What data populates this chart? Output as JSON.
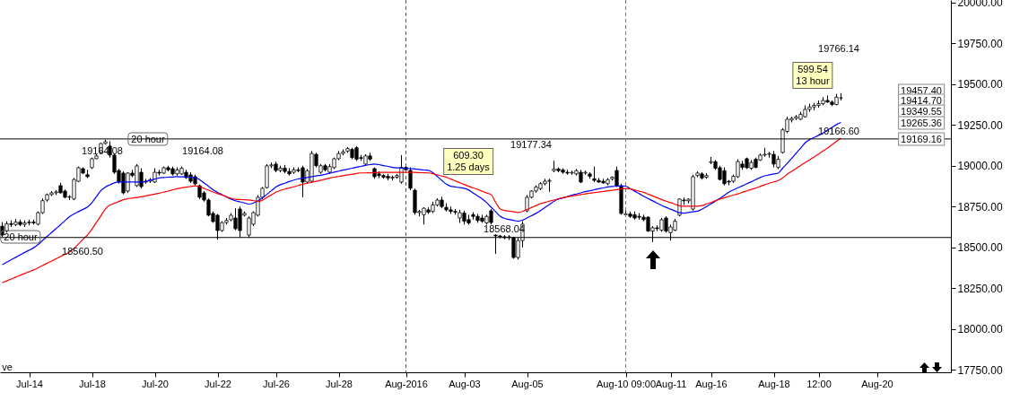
{
  "chart_data": {
    "type": "candlestick",
    "categories": [
      null,
      null,
      null,
      null,
      null,
      null,
      "Jul-14",
      null,
      null,
      null,
      null,
      null,
      null,
      null,
      null,
      null,
      null,
      null,
      null,
      null,
      "Jul-18",
      null,
      null,
      null,
      null,
      null,
      null,
      null,
      null,
      null,
      null,
      null,
      null,
      null,
      "Jul-20",
      null,
      null,
      null,
      null,
      null,
      null,
      null,
      null,
      null,
      null,
      null,
      null,
      null,
      "Jul-22",
      null,
      null,
      null,
      null,
      null,
      null,
      null,
      null,
      null,
      null,
      null,
      null,
      "Jul-26",
      null,
      null,
      null,
      null,
      null,
      null,
      null,
      null,
      null,
      null,
      null,
      null,
      null,
      "Jul-28",
      null,
      null,
      null,
      null,
      null,
      null,
      null,
      null,
      null,
      null,
      null,
      null,
      null,
      null,
      "Aug-2016",
      null,
      null,
      null,
      null,
      null,
      null,
      null,
      null,
      null,
      null,
      null,
      null,
      "Aug-03",
      null,
      null,
      null,
      null,
      null,
      null,
      null,
      null,
      null,
      null,
      null,
      null,
      null,
      "Aug-05",
      null,
      null,
      null,
      null,
      null,
      null,
      null,
      null,
      null,
      null,
      null,
      null,
      null,
      null,
      null,
      null,
      null,
      null,
      null,
      null,
      null,
      "Aug-10 09:00",
      null,
      null,
      null,
      null,
      null,
      null,
      null,
      null,
      null,
      "Aug-11",
      null,
      null,
      null,
      null,
      null,
      null,
      null,
      null,
      "Aug-16",
      null,
      null,
      null,
      null,
      null,
      null,
      null,
      null,
      null,
      null,
      null,
      null,
      null,
      "Aug-18",
      null,
      null,
      null,
      null,
      null,
      null,
      null,
      null,
      null,
      "12:00",
      null,
      null,
      null,
      null,
      null,
      null,
      null,
      null,
      null,
      null,
      null,
      null,
      "Aug-20",
      null,
      null,
      null,
      null,
      null,
      null,
      null,
      null,
      null,
      null,
      null,
      null,
      null,
      null,
      null,
      null
    ],
    "ohlc": [
      [
        18630,
        18655,
        18565,
        18575
      ],
      [
        18600,
        18660,
        18590,
        18645
      ],
      [
        18645,
        18665,
        18625,
        18640
      ],
      [
        18640,
        18675,
        18630,
        18655
      ],
      [
        18655,
        18670,
        18630,
        18640
      ],
      [
        18640,
        18665,
        18625,
        18650
      ],
      [
        18650,
        18670,
        18635,
        18655
      ],
      [
        18655,
        18670,
        18640,
        18650
      ],
      [
        18642,
        18720,
        18635,
        18713
      ],
      [
        18712,
        18800,
        18705,
        18786
      ],
      [
        18790,
        18830,
        18780,
        18823
      ],
      [
        18823,
        18845,
        18815,
        18834
      ],
      [
        18834,
        18850,
        18820,
        18840
      ],
      [
        18878,
        18895,
        18830,
        18834
      ],
      [
        18845,
        18855,
        18800,
        18807
      ],
      [
        18807,
        18820,
        18790,
        18810
      ],
      [
        18796,
        18925,
        18790,
        18916
      ],
      [
        18905,
        18995,
        18900,
        18988
      ],
      [
        18982,
        18990,
        18950,
        18955
      ],
      [
        18945,
        18975,
        18925,
        18933
      ],
      [
        18988,
        19050,
        18980,
        19043
      ],
      [
        19043,
        19070,
        19040,
        19060
      ],
      [
        19081,
        19140,
        19075,
        19136
      ],
      [
        19136,
        19160,
        19130,
        19147
      ],
      [
        19120,
        19150,
        19050,
        19065
      ],
      [
        19065,
        19075,
        18950,
        18960
      ],
      [
        18971,
        18980,
        18890,
        18900
      ],
      [
        18955,
        18965,
        18825,
        18834
      ],
      [
        18845,
        18960,
        18835,
        18955
      ],
      [
        18955,
        18975,
        18930,
        18940
      ],
      [
        18878,
        19010,
        18870,
        18999
      ],
      [
        18960,
        18985,
        18860,
        18872
      ],
      [
        18900,
        18920,
        18890,
        18905
      ],
      [
        18905,
        18925,
        18895,
        18915
      ],
      [
        18900,
        18985,
        18895,
        18960
      ],
      [
        18960,
        18975,
        18940,
        18955
      ],
      [
        18955,
        18995,
        18950,
        18988
      ],
      [
        18988,
        19000,
        18965,
        18975
      ],
      [
        18982,
        18995,
        18940,
        18950
      ],
      [
        18950,
        18990,
        18940,
        18975
      ],
      [
        18950,
        18995,
        18945,
        18985
      ],
      [
        18960,
        18975,
        18920,
        18927
      ],
      [
        18944,
        18960,
        18895,
        18905
      ],
      [
        18933,
        18945,
        18880,
        18889
      ],
      [
        18878,
        18885,
        18795,
        18807
      ],
      [
        18834,
        18845,
        18780,
        18790
      ],
      [
        18790,
        18800,
        18690,
        18697
      ],
      [
        18708,
        18720,
        18650,
        18658
      ],
      [
        18697,
        18705,
        18548,
        18603
      ],
      [
        18603,
        18660,
        18595,
        18652
      ],
      [
        18652,
        18680,
        18640,
        18665
      ],
      [
        18669,
        18710,
        18660,
        18697
      ],
      [
        18680,
        18740,
        18605,
        18614
      ],
      [
        18735,
        18750,
        18560,
        18603
      ],
      [
        18697,
        18720,
        18690,
        18708
      ],
      [
        18575,
        18690,
        18559,
        18680
      ],
      [
        18642,
        18720,
        18630,
        18713
      ],
      [
        18697,
        18820,
        18690,
        18807
      ],
      [
        18807,
        18870,
        18795,
        18862
      ],
      [
        18866,
        19010,
        18860,
        18999
      ],
      [
        18999,
        19020,
        18985,
        19005
      ],
      [
        19010,
        19025,
        18960,
        18971
      ],
      [
        18971,
        19000,
        18960,
        18985
      ],
      [
        18985,
        19005,
        18955,
        18965
      ],
      [
        18965,
        18985,
        18940,
        18950
      ],
      [
        18960,
        18990,
        18950,
        18975
      ],
      [
        18975,
        18990,
        18960,
        18970
      ],
      [
        18988,
        19000,
        18807,
        18900
      ],
      [
        18900,
        18980,
        18890,
        18970
      ],
      [
        18905,
        19090,
        18895,
        19075
      ],
      [
        19070,
        19080,
        18990,
        19000
      ],
      [
        18960,
        19010,
        18950,
        19000
      ],
      [
        19000,
        19010,
        18965,
        18975
      ],
      [
        18960,
        19010,
        18950,
        18995
      ],
      [
        18988,
        19050,
        18980,
        19043
      ],
      [
        19043,
        19090,
        19035,
        19075
      ],
      [
        19075,
        19100,
        19065,
        19085
      ],
      [
        19090,
        19115,
        19080,
        19105
      ],
      [
        19100,
        19110,
        19040,
        19050
      ],
      [
        19110,
        19120,
        19030,
        19040
      ],
      [
        19050,
        19065,
        19030,
        19045
      ],
      [
        19010,
        19070,
        19000,
        19060
      ],
      [
        19060,
        19080,
        19030,
        19040
      ],
      [
        18982,
        18990,
        18920,
        18933
      ],
      [
        18950,
        18965,
        18925,
        18940
      ],
      [
        18940,
        18950,
        18920,
        18930
      ],
      [
        18935,
        18950,
        18910,
        18925
      ],
      [
        18925,
        18940,
        18910,
        18930
      ],
      [
        18930,
        18950,
        18920,
        18940
      ],
      [
        18900,
        19065,
        18890,
        18990
      ],
      [
        18990,
        19005,
        18960,
        18975
      ],
      [
        18971,
        18990,
        18850,
        18862
      ],
      [
        18850,
        18860,
        18700,
        18713
      ],
      [
        18713,
        18730,
        18690,
        18720
      ],
      [
        18700,
        18745,
        18640,
        18740
      ],
      [
        18730,
        18745,
        18705,
        18715
      ],
      [
        18720,
        18780,
        18710,
        18760
      ],
      [
        18760,
        18800,
        18750,
        18790
      ],
      [
        18790,
        18810,
        18740,
        18750
      ],
      [
        18745,
        18770,
        18720,
        18730
      ],
      [
        18730,
        18750,
        18705,
        18720
      ],
      [
        18720,
        18735,
        18700,
        18715
      ],
      [
        18680,
        18730,
        18650,
        18713
      ],
      [
        18710,
        18725,
        18640,
        18660
      ],
      [
        18670,
        18700,
        18640,
        18650
      ],
      [
        18700,
        18715,
        18670,
        18690
      ],
      [
        18690,
        18705,
        18650,
        18665
      ],
      [
        18680,
        18700,
        18650,
        18660
      ],
      [
        18650,
        18700,
        18640,
        18690
      ],
      [
        18724,
        18735,
        18640,
        18652
      ],
      [
        18575,
        18580,
        18460,
        18570
      ],
      [
        18570,
        18575,
        18555,
        18565
      ],
      [
        18565,
        18575,
        18550,
        18560
      ],
      [
        18560,
        18575,
        18545,
        18565
      ],
      [
        18559,
        18565,
        18430,
        18438
      ],
      [
        18438,
        18560,
        18425,
        18542
      ],
      [
        18542,
        18660,
        18500,
        18642
      ],
      [
        18724,
        18820,
        18715,
        18807
      ],
      [
        18807,
        18850,
        18800,
        18845
      ],
      [
        18845,
        18880,
        18835,
        18870
      ],
      [
        18860,
        18900,
        18850,
        18890
      ],
      [
        18890,
        18920,
        18880,
        18905
      ],
      [
        18905,
        18920,
        18840,
        18910
      ],
      [
        18970,
        19030,
        18960,
        18980
      ],
      [
        18980,
        18990,
        18960,
        18970
      ],
      [
        18975,
        18985,
        18950,
        18960
      ],
      [
        18960,
        18975,
        18945,
        18955
      ],
      [
        18955,
        18970,
        18945,
        18960
      ],
      [
        18950,
        18980,
        18940,
        18970
      ],
      [
        18960,
        18975,
        18895,
        18900
      ],
      [
        18955,
        18970,
        18945,
        18960
      ],
      [
        18950,
        18960,
        18920,
        18935
      ],
      [
        18920,
        18995,
        18900,
        18910
      ],
      [
        18910,
        18925,
        18895,
        18900
      ],
      [
        18905,
        18920,
        18890,
        18895
      ],
      [
        18890,
        18925,
        18880,
        18915
      ],
      [
        18920,
        18935,
        18910,
        18930
      ],
      [
        18971,
        18995,
        18870,
        18878
      ],
      [
        18878,
        18890,
        18700,
        18708
      ],
      [
        18700,
        18730,
        18690,
        18705
      ],
      [
        18705,
        18720,
        18680,
        18690
      ],
      [
        18700,
        18720,
        18670,
        18680
      ],
      [
        18690,
        18710,
        18670,
        18685
      ],
      [
        18685,
        18700,
        18660,
        18670
      ],
      [
        18685,
        18690,
        18595,
        18600
      ],
      [
        18600,
        18630,
        18532,
        18620
      ],
      [
        18620,
        18635,
        18600,
        18615
      ],
      [
        18605,
        18680,
        18595,
        18669
      ],
      [
        18680,
        18690,
        18590,
        18600
      ],
      [
        18590,
        18640,
        18542,
        18625
      ],
      [
        18605,
        18675,
        18600,
        18660
      ],
      [
        18697,
        18800,
        18690,
        18796
      ],
      [
        18790,
        18805,
        18760,
        18785
      ],
      [
        18785,
        18800,
        18770,
        18795
      ],
      [
        18735,
        18945,
        18725,
        18933
      ],
      [
        18940,
        18965,
        18930,
        18955
      ],
      [
        18950,
        18960,
        18915,
        18925
      ],
      [
        18930,
        18955,
        18920,
        18940
      ],
      [
        19020,
        19054,
        19010,
        19025
      ],
      [
        19025,
        19035,
        18975,
        18985
      ],
      [
        18988,
        19000,
        18910,
        18916
      ],
      [
        18970,
        18990,
        18880,
        18890
      ],
      [
        18905,
        18912,
        18880,
        18900
      ],
      [
        18905,
        18945,
        18895,
        18935
      ],
      [
        18933,
        19040,
        18925,
        19026
      ],
      [
        19010,
        19030,
        18975,
        18990
      ],
      [
        19043,
        19050,
        18980,
        18988
      ],
      [
        18985,
        19035,
        18975,
        19020
      ],
      [
        19040,
        19050,
        18985,
        18990
      ],
      [
        19035,
        19075,
        19030,
        19065
      ],
      [
        19065,
        19110,
        19055,
        19070
      ],
      [
        19070,
        19085,
        19050,
        19075
      ],
      [
        19070,
        19090,
        18990,
        19010
      ],
      [
        18990,
        19060,
        18980,
        19040
      ],
      [
        19081,
        19230,
        19075,
        19220
      ],
      [
        19210,
        19300,
        19200,
        19285
      ],
      [
        19280,
        19300,
        19265,
        19290
      ],
      [
        19290,
        19310,
        19280,
        19300
      ],
      [
        19285,
        19330,
        19280,
        19315
      ],
      [
        19300,
        19370,
        19295,
        19345
      ],
      [
        19345,
        19380,
        19330,
        19360
      ],
      [
        19360,
        19385,
        19340,
        19370
      ],
      [
        19370,
        19400,
        19355,
        19380
      ],
      [
        19380,
        19420,
        19370,
        19400
      ],
      [
        19400,
        19430,
        19385,
        19390
      ],
      [
        19390,
        19400,
        19365,
        19375
      ],
      [
        19375,
        19440,
        19370,
        19420
      ],
      [
        19415,
        19445,
        19400,
        19415
      ],
      null,
      null,
      null,
      null,
      null,
      null,
      null,
      null,
      null,
      null,
      null,
      null,
      null,
      null,
      null,
      null,
      null,
      null,
      null,
      null,
      null,
      null,
      null,
      null
    ],
    "series": [
      {
        "type": "line",
        "color": "#0000ff",
        "values": [
          18394,
          18409,
          18424,
          18439,
          18454,
          18469,
          18483,
          18498,
          18518,
          18543,
          18567,
          18591,
          18615,
          18639,
          18664,
          18688,
          18705,
          18719,
          18733,
          18747,
          18774,
          18811,
          18848,
          18870,
          18883,
          18895,
          18900,
          18900,
          18900,
          18900,
          18900,
          18900,
          18904,
          18911,
          18918,
          18925,
          18928,
          18930,
          18931,
          18933,
          18932,
          18931,
          18929,
          18928,
          18915,
          18894,
          18874,
          18853,
          18837,
          18823,
          18809,
          18796,
          18786,
          18779,
          18772,
          18765,
          18772,
          18786,
          18803,
          18825,
          18847,
          18869,
          18884,
          18893,
          18903,
          18912,
          18919,
          18924,
          18928,
          18933,
          18938,
          18942,
          18948,
          18954,
          18961,
          18967,
          18973,
          18979,
          18985,
          18991,
          18996,
          19002,
          19007,
          19010,
          19007,
          19001,
          18996,
          18990,
          18987,
          18986,
          18984,
          18983,
          18980,
          18977,
          18974,
          18972,
          18957,
          18934,
          18911,
          18887,
          18874,
          18870,
          18866,
          18862,
          18851,
          18833,
          18815,
          18797,
          18774,
          18746,
          18719,
          18691,
          18677,
          18671,
          18666,
          18660,
          18667,
          18680,
          18694,
          18708,
          18725,
          18744,
          18763,
          18782,
          18795,
          18803,
          18811,
          18820,
          18827,
          18834,
          18841,
          18847,
          18853,
          18859,
          18864,
          18870,
          18873,
          18875,
          18876,
          18875,
          18860,
          18844,
          18829,
          18813,
          18799,
          18785,
          18771,
          18757,
          18745,
          18734,
          18723,
          18712,
          18710,
          18714,
          18718,
          18722,
          18734,
          18750,
          18767,
          18783,
          18801,
          18819,
          18838,
          18852,
          18865,
          18877,
          18890,
          18902,
          18915,
          18928,
          18938,
          18944,
          18950,
          18955,
          18985,
          19014,
          19045,
          19077,
          19108,
          19140,
          19160,
          19173,
          19186,
          19201,
          19218,
          19235,
          19252,
          19265,
          null,
          null,
          null,
          null,
          null,
          null,
          null,
          null,
          null,
          null,
          null,
          null,
          null,
          null,
          null,
          null,
          null,
          null,
          null,
          null,
          null,
          null,
          null,
          null
        ]
      },
      {
        "type": "line",
        "color": "#ff0000",
        "values": [
          18284,
          18295,
          18306,
          18318,
          18329,
          18340,
          18351,
          18362,
          18375,
          18389,
          18403,
          18416,
          18430,
          18444,
          18458,
          18471,
          18494,
          18521,
          18549,
          18576,
          18612,
          18653,
          18694,
          18736,
          18759,
          18770,
          18781,
          18792,
          18798,
          18802,
          18806,
          18810,
          18815,
          18821,
          18826,
          18832,
          18838,
          18845,
          18852,
          18859,
          18865,
          18869,
          18873,
          18877,
          18872,
          18861,
          18850,
          18839,
          18829,
          18820,
          18810,
          18801,
          18795,
          18793,
          18792,
          18790,
          18787,
          18781,
          18789,
          18806,
          18822,
          18838,
          18849,
          18857,
          18864,
          18871,
          18879,
          18886,
          18893,
          18899,
          18905,
          18911,
          18918,
          18924,
          18930,
          18934,
          18939,
          18944,
          18948,
          18953,
          18956,
          18956,
          18957,
          18958,
          18959,
          18960,
          18960,
          18960,
          18960,
          18960,
          18960,
          18960,
          18959,
          18958,
          18957,
          18956,
          18951,
          18944,
          18937,
          18930,
          18918,
          18907,
          18896,
          18885,
          18874,
          18864,
          18855,
          18844,
          18833,
          18822,
          18776,
          18735,
          18726,
          18722,
          18718,
          18714,
          18720,
          18732,
          18744,
          18756,
          18768,
          18775,
          18783,
          18790,
          18798,
          18805,
          18810,
          18814,
          18819,
          18823,
          18828,
          18832,
          18836,
          18839,
          18843,
          18847,
          18850,
          18854,
          18858,
          18861,
          18858,
          18851,
          18844,
          18837,
          18826,
          18815,
          18804,
          18793,
          18783,
          18774,
          18764,
          18755,
          18752,
          18752,
          18752,
          18752,
          18756,
          18766,
          18775,
          18785,
          18796,
          18804,
          18812,
          18820,
          18828,
          18837,
          18846,
          18855,
          18864,
          18873,
          18884,
          18893,
          18901,
          18909,
          18926,
          18948,
          18966,
          18984,
          19002,
          19019,
          19036,
          19054,
          19072,
          19090,
          19108,
          19129,
          19150,
          19169,
          null,
          null,
          null,
          null,
          null,
          null,
          null,
          null,
          null,
          null,
          null,
          null,
          null,
          null,
          null,
          null,
          null,
          null,
          null,
          null,
          null,
          null,
          null,
          null
        ]
      }
    ],
    "ylim": [
      17735,
      20015
    ],
    "yticks": [
      {
        "value": 17750,
        "label": "17750.00"
      },
      {
        "value": 18000,
        "label": "18000.00"
      },
      {
        "value": 18250,
        "label": "18250.00"
      },
      {
        "value": 18500,
        "label": "18500.00"
      },
      {
        "value": 18750,
        "label": "18750.00"
      },
      {
        "value": 19000,
        "label": "19000.00"
      },
      {
        "value": 19250,
        "label": "19250.00"
      },
      {
        "value": 19500,
        "label": "19500.00"
      },
      {
        "value": 19750,
        "label": "19750.00"
      },
      {
        "value": 20000,
        "label": "20000.00"
      }
    ],
    "ref_lines": [
      {
        "axis": "y",
        "value": 19164.08,
        "color": "#000000"
      },
      {
        "axis": "y",
        "value": 18560.5,
        "color": "#000000"
      },
      {
        "axis": "x",
        "value": "Aug-2016",
        "color": "#555555",
        "line_style": "dashed"
      },
      {
        "axis": "x",
        "value": "Aug-10 09:00",
        "color": "#777777",
        "line_style": "dashed"
      }
    ],
    "annotations": [
      "20 hour",
      "18560.50",
      "20 hour",
      "19164.08",
      "19164.08",
      "19177.34",
      "18568.04",
      "609.30\n1.25 days",
      "19766.14",
      "599.54\n13 hour",
      "19166.60",
      "19457.40",
      "19414.70",
      "19349.55",
      "19265.36",
      "19169.16",
      "ve"
    ]
  }
}
